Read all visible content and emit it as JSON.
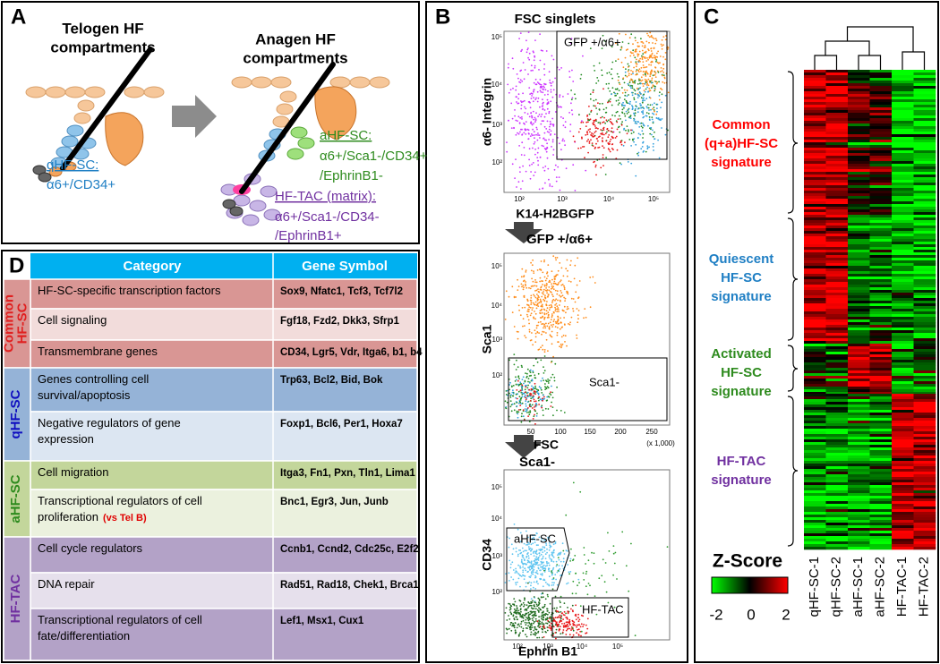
{
  "panel_a": {
    "label": "A",
    "telogen_title": [
      "Telogen HF",
      "compartments"
    ],
    "anagen_title": [
      "Anagen HF",
      "compartments"
    ],
    "qhfsc": {
      "name": "qHF-SC:",
      "markers": [
        "α6+/CD34+"
      ]
    },
    "ahfsc": {
      "name": "aHF-SC:",
      "markers": [
        "α6+/Sca1-/CD34+",
        "/EphrinB1-"
      ]
    },
    "hftac": {
      "name": "HF-TAC (matrix):",
      "markers": [
        "α6+/Sca1-/CD34-",
        "/EphrinB1+"
      ]
    }
  },
  "panel_b": {
    "label": "B",
    "plots": [
      {
        "title": "FSC singlets",
        "y_label": "α6- Integrin",
        "x_label": "K14-H2BGFP",
        "xticks": [
          "10²",
          "10³",
          "10⁴",
          "10⁵"
        ],
        "yticks": [
          "10⁵",
          "10⁴",
          "10³",
          "10²"
        ],
        "gate_labels": [
          "GFP +/α6+"
        ]
      },
      {
        "title": "GFP +/α6+",
        "y_label": "Sca1",
        "x_label": "FSC",
        "xticks": [
          "50",
          "100",
          "150",
          "200",
          "250"
        ],
        "x_unit": "(x 1,000)",
        "yticks": [
          "10⁵",
          "10⁴",
          "10³",
          "10²"
        ],
        "gate_labels": [
          "Sca1-"
        ]
      },
      {
        "title": "Sca1-",
        "y_label": "CD34",
        "x_label": "Ephrin B1",
        "xticks": [
          "10²",
          "10³",
          "10⁴",
          "10⁵"
        ],
        "yticks": [
          "10⁵",
          "10⁴",
          "10³",
          "10²"
        ],
        "gate_labels": [
          "aHF-SC",
          "HF-TAC"
        ]
      }
    ]
  },
  "panel_c": {
    "label": "C",
    "signatures": [
      {
        "lines": [
          "Common",
          "(q+a)HF-SC",
          "signature"
        ],
        "color": "#ff0000"
      },
      {
        "lines": [
          "Quiescent",
          "HF-SC",
          "signature"
        ],
        "color": "#1f7fc4"
      },
      {
        "lines": [
          "Activated",
          "HF-SC",
          "signature"
        ],
        "color": "#2e8b1e"
      },
      {
        "lines": [
          "HF-TAC",
          "signature"
        ],
        "color": "#7030a0"
      }
    ],
    "samples": [
      "qHF-SC-1",
      "qHF-SC-2",
      "aHF-SC-1",
      "aHF-SC-2",
      "HF-TAC-1",
      "HF-TAC-2"
    ],
    "legend_title": "Z-Score",
    "legend_ticks": [
      "-2",
      "0",
      "2"
    ]
  },
  "panel_d": {
    "label": "D",
    "header": [
      "Category",
      "Gene Symbol"
    ],
    "groups": [
      {
        "name": [
          "Common",
          "HF-SC"
        ],
        "color": "#e02020",
        "rows": [
          {
            "category": [
              "HF-SC-specific transcription factors"
            ],
            "genes": "Sox9, Nfatc1, Tcf3, Tcf7l2"
          },
          {
            "category": [
              "Cell signaling"
            ],
            "genes": "Fgf18, Fzd2, Dkk3, Sfrp1"
          },
          {
            "category": [
              "Transmembrane genes"
            ],
            "genes": "CD34, Lgr5, Vdr, Itga6, b1, b4"
          }
        ]
      },
      {
        "name": [
          "qHF-SC"
        ],
        "color": "#1010c0",
        "rows": [
          {
            "category": [
              "Genes controlling cell",
              "survival/apoptosis"
            ],
            "genes": "Trp63, Bcl2, Bid, Bok"
          },
          {
            "category": [
              "Negative regulators of gene",
              "expression"
            ],
            "genes": "Foxp1, Bcl6, Per1, Hoxa7"
          }
        ]
      },
      {
        "name": [
          "aHF-SC"
        ],
        "color": "#2e8b1e",
        "rows": [
          {
            "category": [
              "Cell migration"
            ],
            "genes": "Itga3, Fn1, Pxn, Tln1, Lima1"
          },
          {
            "category": [
              "Transcriptional regulators of cell",
              "proliferation"
            ],
            "note": "(vs Tel B)",
            "genes": "Bnc1, Egr3, Jun, Junb"
          }
        ]
      },
      {
        "name": [
          "HF-TAC"
        ],
        "color": "#7030a0",
        "rows": [
          {
            "category": [
              "Cell cycle regulators"
            ],
            "genes": "Ccnb1, Ccnd2, Cdc25c, E2f2"
          },
          {
            "category": [
              "DNA repair"
            ],
            "genes": "Rad51, Rad18, Chek1, Brca1"
          },
          {
            "category": [
              "Transcriptional regulators of cell",
              "fate/differentiation"
            ],
            "genes": "Lef1, Msx1, Cux1"
          }
        ]
      }
    ]
  }
}
